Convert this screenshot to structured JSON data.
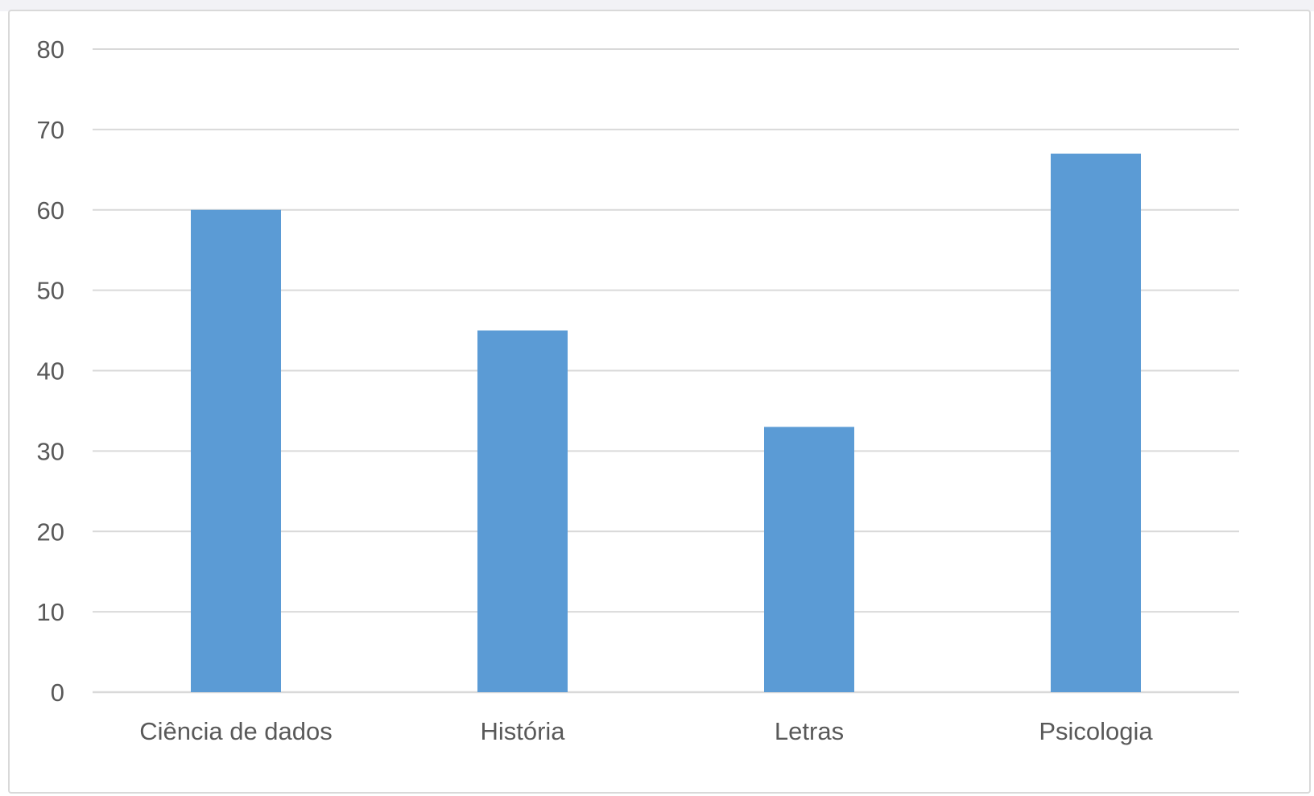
{
  "chart_data": {
    "type": "bar",
    "title": "",
    "xlabel": "",
    "ylabel": "",
    "categories": [
      "Ciência de dados",
      "História",
      "Letras",
      "Psicologia"
    ],
    "values": [
      60,
      45,
      33,
      67
    ],
    "ylim": [
      0,
      80
    ],
    "yticks": [
      "0",
      "10",
      "20",
      "30",
      "40",
      "50",
      "60",
      "70",
      "80"
    ],
    "grid": true,
    "legend": "none",
    "bar_color": "#5b9bd5",
    "grid_color": "#d9d9d9",
    "label_color": "#595959"
  }
}
